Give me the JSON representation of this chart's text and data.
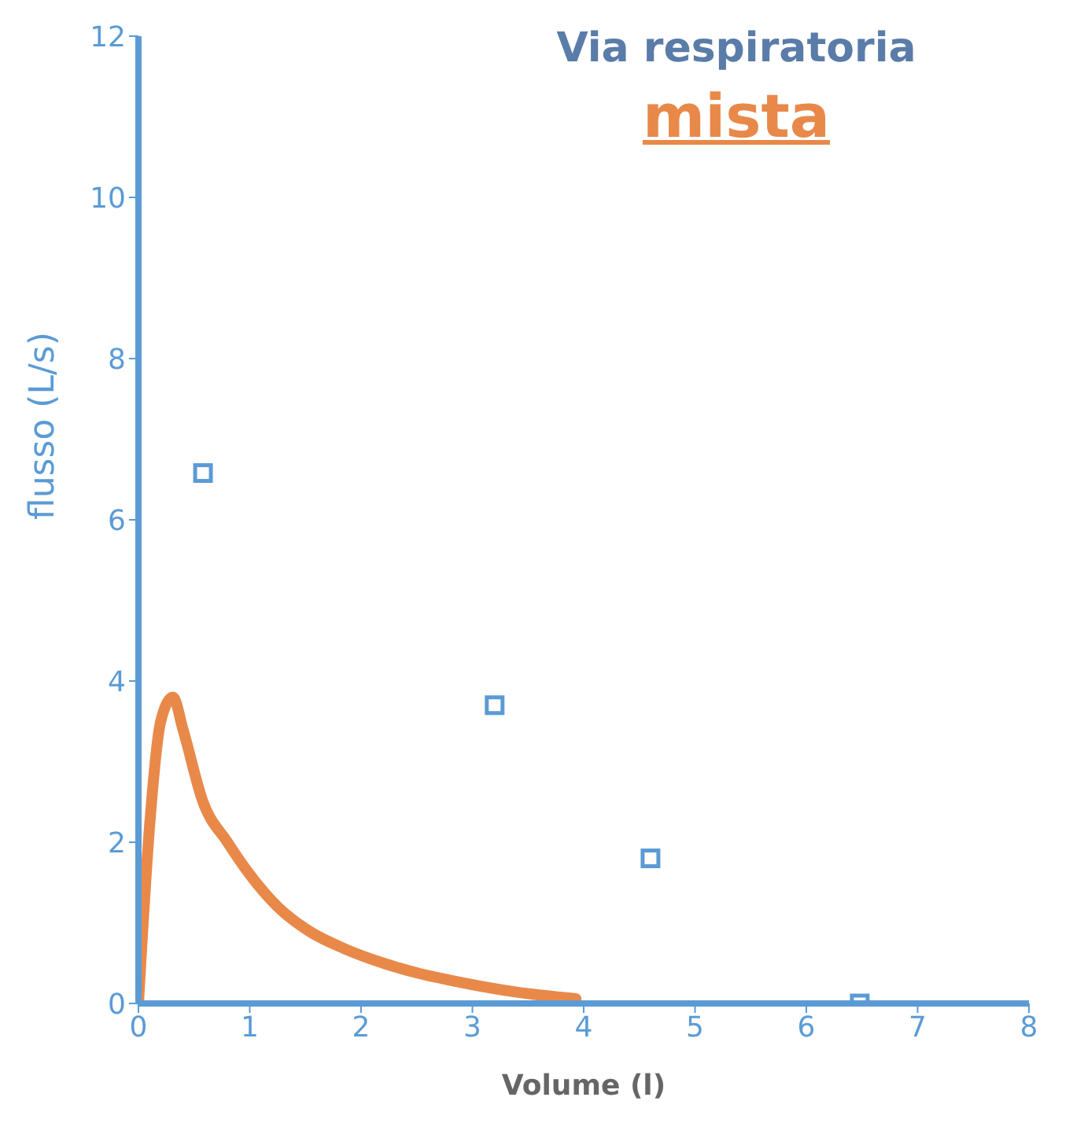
{
  "chart_data": {
    "type": "line",
    "title": "Via respiratoria",
    "subtitle": "mista",
    "xlabel": "Volume (l)",
    "ylabel": "flusso (L/s)",
    "xlim": [
      0,
      8
    ],
    "xticks": [
      0,
      1,
      2,
      3,
      4,
      5,
      6,
      7,
      8
    ],
    "ylim": [
      0,
      12
    ],
    "yticks": [
      0,
      2,
      4,
      6,
      8,
      10,
      12
    ],
    "grid": false,
    "legend": false,
    "series": [
      {
        "color": "#e8894a",
        "marker": "none",
        "line_style": "solid",
        "x": [
          0,
          0.1,
          0.2,
          0.31,
          0.4,
          0.58,
          0.8,
          1.0,
          1.25,
          1.53,
          1.85,
          2.2,
          2.5,
          2.9,
          3.4,
          3.93
        ],
        "values": [
          0,
          2.2,
          3.5,
          3.8,
          3.4,
          2.5,
          2.0,
          1.6,
          1.2,
          0.9,
          0.68,
          0.5,
          0.38,
          0.26,
          0.14,
          0.06
        ]
      },
      {
        "type": "scatter",
        "color": "#5b9bd5",
        "marker": "square",
        "x": [
          0.58,
          3.2,
          4.6,
          6.48
        ],
        "values": [
          6.58,
          3.7,
          1.8,
          0
        ]
      }
    ]
  }
}
